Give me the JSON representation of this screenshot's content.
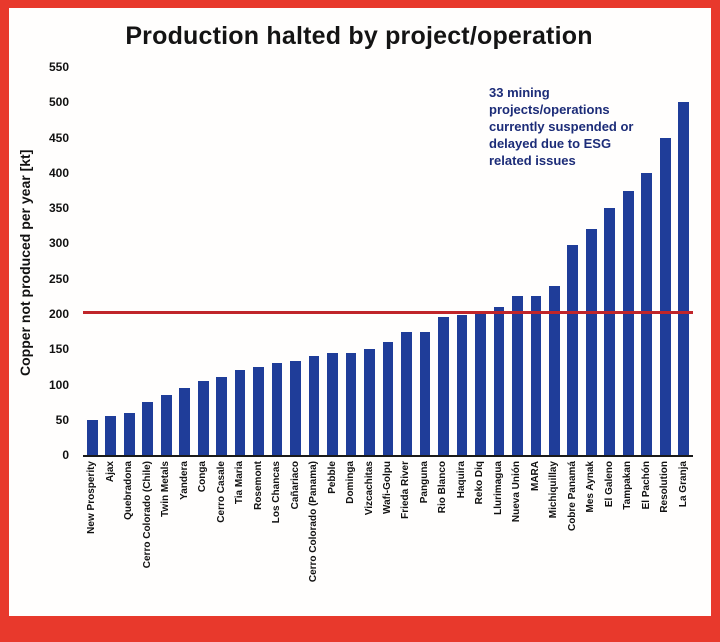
{
  "colors": {
    "frame": "#e8392c",
    "bar": "#1f3d99",
    "threshold": "#c0252a",
    "annotation_text": "#1c2c78"
  },
  "chart_data": {
    "type": "bar",
    "title": "Production halted by project/operation",
    "ylabel": "Copper not produced per year [kt]",
    "xlabel": "",
    "ylim": [
      0,
      550
    ],
    "yticks": [
      0,
      50,
      100,
      150,
      200,
      250,
      300,
      350,
      400,
      450,
      500,
      550
    ],
    "grid": false,
    "legend": false,
    "threshold": 200,
    "annotation": "33 mining projects/operations currently suspended or delayed due to ESG related issues",
    "categories": [
      "New Prosperity",
      "Ajax",
      "Quebradona",
      "Cerro Colorado (Chile)",
      "Twin Metals",
      "Yandera",
      "Conga",
      "Cerro Casale",
      "Tia Maria",
      "Rosemont",
      "Los Chancas",
      "Cañariaco",
      "Cerro Colorado (Panama)",
      "Pebble",
      "Dominga",
      "Vizcachitas",
      "Wafi-Golpu",
      "Frieda River",
      "Panguna",
      "Rio Blanco",
      "Haquira",
      "Reko Diq",
      "Llurimagua",
      "Nueva Unión",
      "MARA",
      "Michiquillay",
      "Cobre Panamá",
      "Mes Aynak",
      "El Galeno",
      "Tampakan",
      "El Pachón",
      "Resolution",
      "La Granja"
    ],
    "values": [
      50,
      55,
      60,
      75,
      85,
      95,
      105,
      110,
      120,
      125,
      130,
      133,
      140,
      145,
      145,
      150,
      160,
      175,
      175,
      195,
      198,
      200,
      210,
      225,
      225,
      240,
      298,
      320,
      350,
      375,
      400,
      450,
      500
    ]
  }
}
